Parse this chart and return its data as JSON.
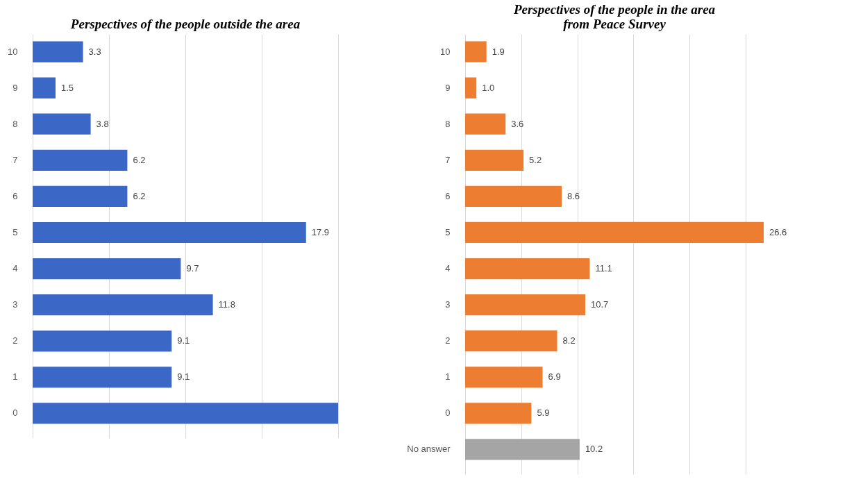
{
  "chart_data": [
    {
      "type": "bar",
      "orientation": "horizontal",
      "title": "Perspectives of the people outside the area",
      "categories": [
        "10",
        "9",
        "8",
        "7",
        "6",
        "5",
        "4",
        "3",
        "2",
        "1",
        "0"
      ],
      "values": [
        3.3,
        1.5,
        3.8,
        6.2,
        6.2,
        17.9,
        9.7,
        11.8,
        9.1,
        9.1,
        20
      ],
      "value_labels": [
        "3.3",
        "1.5",
        "3.8",
        "6.2",
        "6.2",
        "17.9",
        "9.7",
        "11.8",
        "9.1",
        "9.1",
        null
      ],
      "color": "#3b67c6",
      "xlim": [
        0,
        20
      ],
      "xticks": [
        {
          "value": 0,
          "label": null
        },
        {
          "value": 5,
          "label": null
        },
        {
          "value": 10,
          "label": null
        },
        {
          "value": 15,
          "label": null
        },
        {
          "value": 20,
          "label": null
        }
      ],
      "grid": "x"
    },
    {
      "type": "bar",
      "orientation": "horizontal",
      "title": "Perspectives of the people in the area\nfrom Peace Survey",
      "categories": [
        "10",
        "9",
        "8",
        "7",
        "6",
        "5",
        "4",
        "3",
        "2",
        "1",
        "0",
        "No answer"
      ],
      "values": [
        1.9,
        1.0,
        3.6,
        5.2,
        8.6,
        26.6,
        11.1,
        10.7,
        8.2,
        6.9,
        5.9,
        10.2
      ],
      "colors": [
        "#ed7d31",
        "#ed7d31",
        "#ed7d31",
        "#ed7d31",
        "#ed7d31",
        "#ed7d31",
        "#ed7d31",
        "#ed7d31",
        "#ed7d31",
        "#ed7d31",
        "#ed7d31",
        "#a5a5a5"
      ],
      "value_labels": [
        "1.9",
        "1.0",
        "3.6",
        "5.2",
        "8.6",
        "26.6",
        "11.1",
        "10.7",
        "8.2",
        "6.9",
        "5.9",
        "10.2"
      ],
      "xticks": [
        {
          "value": 0,
          "label": null
        },
        {
          "value": 5,
          "label": null
        },
        {
          "value": 10,
          "label": null
        },
        {
          "value": 15,
          "label": null
        },
        {
          "value": 20,
          "label": null
        },
        {
          "value": 25,
          "label": null
        }
      ],
      "grid": "x"
    }
  ]
}
